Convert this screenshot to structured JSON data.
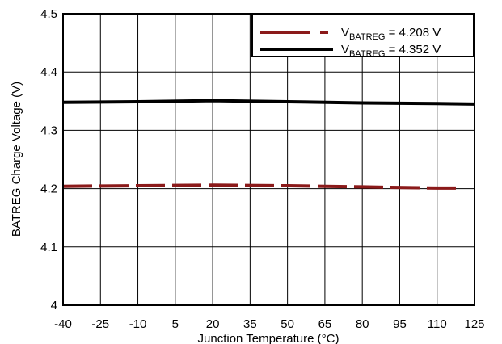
{
  "chart_data": {
    "type": "line",
    "xlabel": "Junction Temperature (°C)",
    "ylabel": "BATREG Charge Voltage (V)",
    "xlim": [
      -40,
      125
    ],
    "ylim": [
      4.0,
      4.5
    ],
    "x_ticks": [
      "-40",
      "-25",
      "-10",
      "5",
      "20",
      "35",
      "50",
      "65",
      "80",
      "95",
      "110",
      "125"
    ],
    "y_ticks": [
      "4",
      "4.1",
      "4.2",
      "4.3",
      "4.4",
      "4.5"
    ],
    "grid": true,
    "legend_position": "top-right",
    "series": [
      {
        "name": "V_BATREG = 4.208 V",
        "legend_main": "V",
        "legend_sub": "BATREG",
        "legend_rest": " = 4.208 V",
        "color": "#8B1A1A",
        "style": "dashed",
        "x": [
          -40,
          -10,
          20,
          50,
          80,
          110,
          119
        ],
        "y": [
          4.204,
          4.205,
          4.206,
          4.205,
          4.203,
          4.201,
          4.201
        ]
      },
      {
        "name": "V_BATREG = 4.352 V",
        "legend_main": "V",
        "legend_sub": "BATREG",
        "legend_rest": " = 4.352 V",
        "color": "#000000",
        "style": "solid",
        "x": [
          -40,
          -10,
          20,
          50,
          80,
          110,
          125
        ],
        "y": [
          4.348,
          4.349,
          4.351,
          4.349,
          4.347,
          4.346,
          4.345
        ]
      }
    ]
  }
}
